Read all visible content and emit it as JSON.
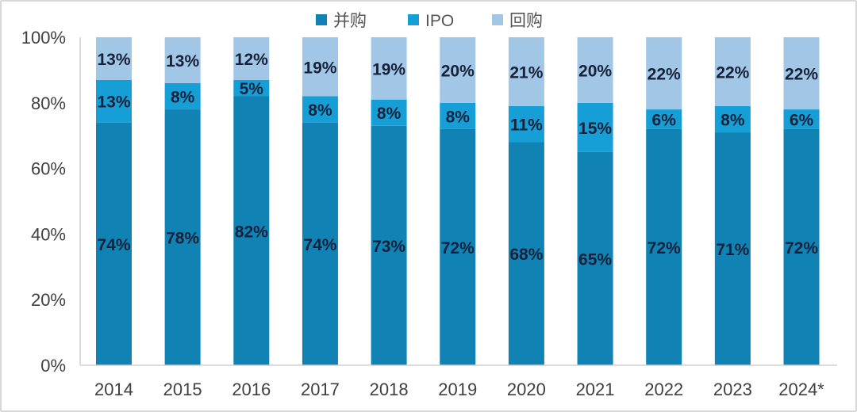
{
  "chart_data": {
    "type": "bar",
    "stacked": true,
    "title": "",
    "xlabel": "",
    "ylabel": "",
    "ylim": [
      0,
      100
    ],
    "yticks": [
      "0%",
      "20%",
      "40%",
      "60%",
      "80%",
      "100%"
    ],
    "ytick_values": [
      0,
      20,
      40,
      60,
      80,
      100
    ],
    "grid": false,
    "legend_position": "top-center",
    "categories": [
      "2014",
      "2015",
      "2016",
      "2017",
      "2018",
      "2019",
      "2020",
      "2021",
      "2022",
      "2023",
      "2024*"
    ],
    "series": [
      {
        "name": "并购",
        "color": "#1182b4",
        "values": [
          74,
          78,
          82,
          74,
          73,
          72,
          68,
          65,
          72,
          71,
          72
        ]
      },
      {
        "name": "IPO",
        "color": "#169fd6",
        "values": [
          13,
          8,
          5,
          8,
          8,
          8,
          11,
          15,
          6,
          8,
          6
        ]
      },
      {
        "name": "回购",
        "color": "#a2c6e6",
        "values": [
          13,
          13,
          12,
          19,
          19,
          20,
          21,
          20,
          22,
          22,
          22
        ]
      }
    ],
    "value_suffix": "%"
  }
}
